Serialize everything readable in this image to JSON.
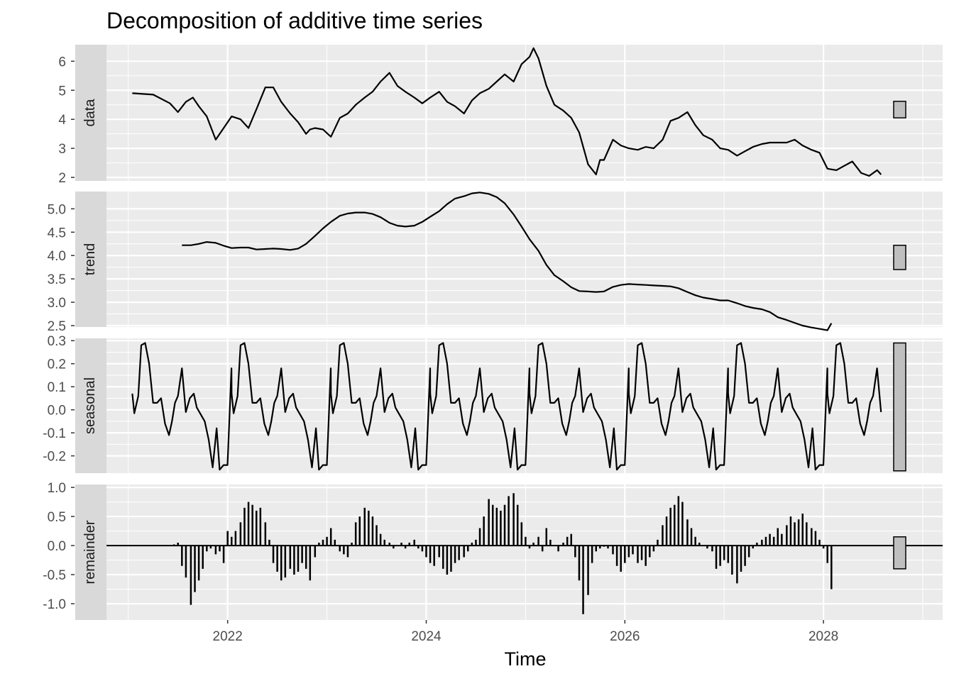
{
  "chart_data": {
    "type": "line",
    "title": "Decomposition of additive time series",
    "xlabel": "Time",
    "xlim": [
      2020.78,
      2029.2
    ],
    "x_ticks": [
      2022,
      2024,
      2026,
      2028
    ],
    "x_tick_labels": [
      "2022",
      "2024",
      "2026",
      "2028"
    ],
    "x_minor_ticks": [
      2021,
      2023,
      2025,
      2027,
      2029
    ],
    "grid": true,
    "panels": [
      {
        "name": "data",
        "type": "line",
        "ylim": [
          1.88,
          6.57
        ],
        "y_ticks": [
          2,
          3,
          4,
          5,
          6
        ],
        "y_tick_labels": [
          "2",
          "3",
          "4",
          "5",
          "6"
        ],
        "range_bar": [
          4.05,
          4.62
        ],
        "x": [
          2021.04,
          2021.25,
          2021.42,
          2021.5,
          2021.58,
          2021.65,
          2021.71,
          2021.79,
          2021.88,
          2021.96,
          2022.04,
          2022.13,
          2022.21,
          2022.29,
          2022.38,
          2022.46,
          2022.54,
          2022.63,
          2022.71,
          2022.79,
          2022.83,
          2022.88,
          2022.96,
          2023.04,
          2023.13,
          2023.21,
          2023.29,
          2023.38,
          2023.46,
          2023.54,
          2023.63,
          2023.71,
          2023.79,
          2023.88,
          2023.96,
          2024.04,
          2024.13,
          2024.21,
          2024.29,
          2024.38,
          2024.46,
          2024.54,
          2024.63,
          2024.71,
          2024.79,
          2024.88,
          2024.96,
          2025.04,
          2025.08,
          2025.13,
          2025.21,
          2025.29,
          2025.38,
          2025.46,
          2025.54,
          2025.63,
          2025.71,
          2025.75,
          2025.79,
          2025.88,
          2025.96,
          2026.04,
          2026.13,
          2026.21,
          2026.29,
          2026.38,
          2026.46,
          2026.54,
          2026.63,
          2026.71,
          2026.79,
          2026.88,
          2026.96,
          2027.04,
          2027.13,
          2027.21,
          2027.29,
          2027.38,
          2027.46,
          2027.54,
          2027.63,
          2027.71,
          2027.79,
          2027.88,
          2027.96,
          2028.04,
          2028.13,
          2028.21,
          2028.29,
          2028.38,
          2028.46,
          2028.54,
          2028.58
        ],
        "y": [
          4.9,
          4.85,
          4.55,
          4.25,
          4.6,
          4.75,
          4.45,
          4.1,
          3.3,
          3.7,
          4.1,
          4.0,
          3.7,
          4.35,
          5.1,
          5.1,
          4.6,
          4.2,
          3.9,
          3.5,
          3.65,
          3.7,
          3.65,
          3.4,
          4.05,
          4.2,
          4.5,
          4.75,
          4.95,
          5.3,
          5.6,
          5.15,
          4.95,
          4.75,
          4.55,
          4.75,
          4.95,
          4.6,
          4.45,
          4.2,
          4.65,
          4.9,
          5.05,
          5.3,
          5.55,
          5.3,
          5.9,
          6.15,
          6.45,
          6.1,
          5.15,
          4.5,
          4.3,
          4.05,
          3.55,
          2.45,
          2.1,
          2.6,
          2.6,
          3.3,
          3.1,
          3.0,
          2.95,
          3.05,
          3.0,
          3.3,
          3.95,
          4.05,
          4.25,
          3.8,
          3.45,
          3.3,
          3.0,
          2.95,
          2.75,
          2.9,
          3.05,
          3.15,
          3.2,
          3.2,
          3.2,
          3.3,
          3.1,
          2.95,
          2.85,
          2.3,
          2.25,
          2.4,
          2.55,
          2.15,
          2.05,
          2.25,
          2.1
        ]
      },
      {
        "name": "trend",
        "type": "line",
        "ylim": [
          2.47,
          5.37
        ],
        "y_ticks": [
          2.5,
          3.0,
          3.5,
          4.0,
          4.5,
          5.0
        ],
        "y_tick_labels": [
          "2.5",
          "3.0",
          "3.5",
          "4.0",
          "4.5",
          "5.0"
        ],
        "range_bar": [
          3.7,
          4.22
        ],
        "x": [
          2021.54,
          2021.63,
          2021.71,
          2021.79,
          2021.88,
          2021.96,
          2022.04,
          2022.13,
          2022.21,
          2022.29,
          2022.38,
          2022.46,
          2022.54,
          2022.63,
          2022.71,
          2022.79,
          2022.88,
          2022.96,
          2023.04,
          2023.13,
          2023.21,
          2023.29,
          2023.38,
          2023.46,
          2023.54,
          2023.63,
          2023.71,
          2023.79,
          2023.88,
          2023.96,
          2024.04,
          2024.13,
          2024.21,
          2024.29,
          2024.38,
          2024.46,
          2024.54,
          2024.63,
          2024.71,
          2024.79,
          2024.88,
          2024.96,
          2025.04,
          2025.13,
          2025.21,
          2025.29,
          2025.38,
          2025.46,
          2025.54,
          2025.63,
          2025.71,
          2025.79,
          2025.88,
          2025.96,
          2026.04,
          2026.13,
          2026.21,
          2026.29,
          2026.38,
          2026.46,
          2026.54,
          2026.63,
          2026.71,
          2026.79,
          2026.88,
          2026.96,
          2027.04,
          2027.13,
          2027.21,
          2027.29,
          2027.38,
          2027.46,
          2027.54,
          2027.63,
          2027.71,
          2027.79,
          2027.88,
          2027.96,
          2028.04,
          2028.08
        ],
        "y": [
          4.22,
          4.22,
          4.25,
          4.29,
          4.27,
          4.21,
          4.16,
          4.17,
          4.17,
          4.13,
          4.14,
          4.15,
          4.14,
          4.12,
          4.15,
          4.25,
          4.42,
          4.58,
          4.72,
          4.85,
          4.9,
          4.92,
          4.92,
          4.89,
          4.82,
          4.7,
          4.64,
          4.62,
          4.64,
          4.72,
          4.83,
          4.95,
          5.1,
          5.22,
          5.27,
          5.33,
          5.35,
          5.32,
          5.25,
          5.12,
          4.88,
          4.62,
          4.35,
          4.1,
          3.8,
          3.58,
          3.45,
          3.32,
          3.24,
          3.23,
          3.22,
          3.23,
          3.33,
          3.37,
          3.39,
          3.38,
          3.37,
          3.36,
          3.35,
          3.34,
          3.3,
          3.22,
          3.15,
          3.1,
          3.07,
          3.04,
          3.04,
          2.98,
          2.92,
          2.88,
          2.85,
          2.79,
          2.68,
          2.62,
          2.56,
          2.5,
          2.46,
          2.43,
          2.4,
          2.55
        ],
        "y_fix_note": ""
      },
      {
        "name": "seasonal",
        "type": "line",
        "ylim": [
          -0.275,
          0.31
        ],
        "y_ticks": [
          -0.2,
          -0.1,
          0.0,
          0.1,
          0.2,
          0.3
        ],
        "y_tick_labels": [
          "-0.2",
          "-0.1",
          "0.0",
          "0.1",
          "0.2",
          "0.3"
        ],
        "range_bar": [
          -0.265,
          0.29
        ],
        "pattern_x_offset": [
          0.0,
          0.02,
          0.06,
          0.09,
          0.13,
          0.17,
          0.21,
          0.25,
          0.29,
          0.33,
          0.37,
          0.4,
          0.43,
          0.46,
          0.5,
          0.54,
          0.58,
          0.62,
          0.65,
          0.69,
          0.73,
          0.77,
          0.81,
          0.85,
          0.88,
          0.92,
          0.96,
          1.0
        ],
        "pattern_y": [
          0.07,
          -0.015,
          0.06,
          0.28,
          0.29,
          0.2,
          0.03,
          0.03,
          0.05,
          -0.06,
          -0.11,
          -0.05,
          0.03,
          0.06,
          0.18,
          -0.01,
          0.05,
          0.07,
          0.01,
          -0.02,
          -0.05,
          -0.13,
          -0.25,
          -0.08,
          -0.26,
          -0.24,
          -0.24,
          0.18
        ],
        "period": 1.0,
        "x_start": 2021.04,
        "x_end": 2028.58
      },
      {
        "name": "remainder",
        "type": "bar",
        "ylim": [
          -1.28,
          1.05
        ],
        "y_ticks": [
          -1.0,
          -0.5,
          0.0,
          0.5,
          1.0
        ],
        "y_tick_labels": [
          "-1.0",
          "-0.5",
          "0.0",
          "0.5",
          "1.0"
        ],
        "range_bar": [
          -0.4,
          0.15
        ],
        "x": [
          2021.46,
          2021.5,
          2021.54,
          2021.58,
          2021.63,
          2021.67,
          2021.71,
          2021.75,
          2021.79,
          2021.83,
          2021.88,
          2021.92,
          2021.96,
          2022.0,
          2022.04,
          2022.08,
          2022.13,
          2022.17,
          2022.21,
          2022.25,
          2022.29,
          2022.33,
          2022.38,
          2022.42,
          2022.46,
          2022.5,
          2022.54,
          2022.58,
          2022.63,
          2022.67,
          2022.71,
          2022.75,
          2022.79,
          2022.83,
          2022.88,
          2022.92,
          2022.96,
          2023.0,
          2023.04,
          2023.08,
          2023.13,
          2023.17,
          2023.21,
          2023.25,
          2023.29,
          2023.33,
          2023.38,
          2023.42,
          2023.46,
          2023.5,
          2023.54,
          2023.58,
          2023.63,
          2023.67,
          2023.71,
          2023.75,
          2023.79,
          2023.83,
          2023.88,
          2023.92,
          2023.96,
          2024.0,
          2024.04,
          2024.08,
          2024.13,
          2024.17,
          2024.21,
          2024.25,
          2024.29,
          2024.33,
          2024.38,
          2024.42,
          2024.46,
          2024.5,
          2024.54,
          2024.58,
          2024.63,
          2024.67,
          2024.71,
          2024.75,
          2024.79,
          2024.83,
          2024.88,
          2024.92,
          2024.96,
          2025.0,
          2025.04,
          2025.08,
          2025.13,
          2025.17,
          2025.21,
          2025.25,
          2025.29,
          2025.33,
          2025.38,
          2025.42,
          2025.46,
          2025.5,
          2025.54,
          2025.58,
          2025.63,
          2025.67,
          2025.71,
          2025.75,
          2025.79,
          2025.83,
          2025.88,
          2025.92,
          2025.96,
          2026.0,
          2026.04,
          2026.08,
          2026.13,
          2026.17,
          2026.21,
          2026.25,
          2026.29,
          2026.33,
          2026.38,
          2026.42,
          2026.46,
          2026.5,
          2026.54,
          2026.58,
          2026.63,
          2026.67,
          2026.71,
          2026.75,
          2026.79,
          2026.83,
          2026.88,
          2026.92,
          2026.96,
          2027.0,
          2027.04,
          2027.08,
          2027.13,
          2027.17,
          2027.21,
          2027.25,
          2027.29,
          2027.33,
          2027.38,
          2027.42,
          2027.46,
          2027.5,
          2027.54,
          2027.58,
          2027.63,
          2027.67,
          2027.71,
          2027.75,
          2027.79,
          2027.83,
          2027.88,
          2027.92,
          2027.96,
          2028.0,
          2028.04,
          2028.08
        ],
        "values": [
          0.02,
          0.05,
          -0.35,
          -0.55,
          -1.02,
          -0.8,
          -0.6,
          -0.4,
          -0.1,
          -0.05,
          -0.15,
          -0.1,
          -0.3,
          0.25,
          0.15,
          0.25,
          0.4,
          0.65,
          0.75,
          0.7,
          0.6,
          0.65,
          0.4,
          0.1,
          -0.3,
          -0.45,
          -0.6,
          -0.55,
          -0.4,
          -0.5,
          -0.45,
          -0.3,
          -0.4,
          -0.6,
          -0.2,
          0.05,
          0.1,
          0.15,
          0.3,
          0.1,
          -0.1,
          -0.15,
          -0.2,
          0.05,
          0.4,
          0.5,
          0.65,
          0.6,
          0.5,
          0.35,
          0.2,
          0.1,
          0.05,
          -0.05,
          0.0,
          0.05,
          -0.05,
          0.05,
          0.1,
          -0.05,
          -0.1,
          -0.2,
          -0.3,
          -0.35,
          -0.2,
          -0.4,
          -0.5,
          -0.45,
          -0.3,
          -0.25,
          -0.2,
          -0.1,
          0.05,
          0.1,
          0.3,
          0.5,
          0.8,
          0.7,
          0.65,
          0.6,
          0.7,
          0.85,
          0.9,
          0.7,
          0.4,
          0.15,
          -0.05,
          0.05,
          0.15,
          -0.1,
          0.3,
          0.1,
          0.0,
          -0.1,
          0.05,
          0.15,
          0.2,
          -0.2,
          -0.6,
          -1.18,
          -0.85,
          -0.3,
          -0.1,
          -0.05,
          -0.02,
          -0.05,
          -0.15,
          -0.35,
          -0.45,
          -0.3,
          -0.2,
          -0.15,
          -0.3,
          -0.25,
          -0.35,
          -0.2,
          -0.1,
          0.1,
          0.35,
          0.5,
          0.65,
          0.7,
          0.85,
          0.75,
          0.45,
          0.3,
          0.15,
          0.05,
          0.0,
          -0.05,
          -0.1,
          -0.4,
          -0.35,
          -0.25,
          -0.3,
          -0.5,
          -0.65,
          -0.45,
          -0.35,
          -0.2,
          -0.05,
          0.05,
          0.1,
          0.15,
          0.2,
          0.15,
          0.3,
          0.2,
          0.35,
          0.5,
          0.4,
          0.45,
          0.55,
          0.4,
          0.3,
          0.25,
          0.1,
          -0.05,
          -0.3,
          -0.75
        ],
        "baseline": 0.0
      }
    ]
  }
}
